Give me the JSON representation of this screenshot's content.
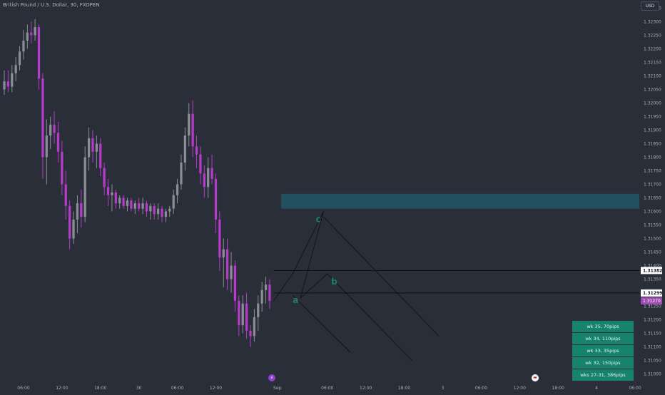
{
  "header": {
    "symbol_title": "British Pound / U.S. Dollar, 30, FXOPEN",
    "currency": "USD"
  },
  "colors": {
    "background": "#2a2e39",
    "candle_up": "#8b8e96",
    "candle_down": "#b43cc8",
    "zone_fill": "#23505e",
    "line_color": "#0e0f12",
    "wave_label": "#1e7d6a",
    "table_fill": "#17836c",
    "last_price_bg": "#a04bb4",
    "marker_bg": "#ffffff"
  },
  "chart_data": {
    "type": "candlestick",
    "title": "British Pound / U.S. Dollar, 30, FXOPEN",
    "y_axis": {
      "range": [
        1.3097,
        1.3238
      ],
      "ticks": [
        "1.32350",
        "1.32300",
        "1.32250",
        "1.32200",
        "1.32150",
        "1.32100",
        "1.32050",
        "1.32000",
        "1.31950",
        "1.31900",
        "1.31850",
        "1.31800",
        "1.31750",
        "1.31700",
        "1.31650",
        "1.31600",
        "1.31550",
        "1.31500",
        "1.31450",
        "1.31400",
        "1.31350",
        "1.31300",
        "1.31250",
        "1.31200",
        "1.31150",
        "1.31100",
        "1.31050",
        "1.31000"
      ]
    },
    "x_axis": {
      "range": [
        0,
        164
      ],
      "ticks": [
        {
          "i": 5,
          "label": "06:00"
        },
        {
          "i": 15,
          "label": "12:00"
        },
        {
          "i": 25,
          "label": "18:00"
        },
        {
          "i": 35,
          "label": "30"
        },
        {
          "i": 45,
          "label": "06:00"
        },
        {
          "i": 55,
          "label": "12:00"
        },
        {
          "i": 71,
          "label": "Sep"
        },
        {
          "i": 84,
          "label": "06:00"
        },
        {
          "i": 94,
          "label": "12:00"
        },
        {
          "i": 104,
          "label": "18:00"
        },
        {
          "i": 114,
          "label": "3"
        },
        {
          "i": 124,
          "label": "06:00"
        },
        {
          "i": 134,
          "label": "12:00"
        },
        {
          "i": 144,
          "label": "18:00"
        },
        {
          "i": 154,
          "label": "4"
        },
        {
          "i": 164,
          "label": "06:00"
        }
      ]
    },
    "candles": [
      [
        1.3205,
        1.3212,
        1.3203,
        1.3208
      ],
      [
        1.3208,
        1.3212,
        1.3204,
        1.3206
      ],
      [
        1.3206,
        1.3214,
        1.3204,
        1.3211
      ],
      [
        1.3211,
        1.3217,
        1.3208,
        1.3214
      ],
      [
        1.3214,
        1.3221,
        1.3212,
        1.3219
      ],
      [
        1.3219,
        1.3227,
        1.3216,
        1.3223
      ],
      [
        1.3223,
        1.3229,
        1.322,
        1.3226
      ],
      [
        1.3226,
        1.323,
        1.3222,
        1.3225
      ],
      [
        1.3225,
        1.3231,
        1.3223,
        1.3228
      ],
      [
        1.3228,
        1.3229,
        1.3205,
        1.3209
      ],
      [
        1.3209,
        1.3211,
        1.3172,
        1.318
      ],
      [
        1.318,
        1.3194,
        1.317,
        1.3188
      ],
      [
        1.3188,
        1.3195,
        1.3183,
        1.3192
      ],
      [
        1.3192,
        1.3197,
        1.3185,
        1.3189
      ],
      [
        1.3189,
        1.3193,
        1.3178,
        1.3182
      ],
      [
        1.3182,
        1.3186,
        1.3166,
        1.317
      ],
      [
        1.317,
        1.3175,
        1.3157,
        1.3162
      ],
      [
        1.3162,
        1.3164,
        1.3146,
        1.315
      ],
      [
        1.315,
        1.316,
        1.3148,
        1.3157
      ],
      [
        1.3157,
        1.3166,
        1.3152,
        1.3163
      ],
      [
        1.3163,
        1.3168,
        1.3154,
        1.3158
      ],
      [
        1.3158,
        1.3184,
        1.3156,
        1.318
      ],
      [
        1.318,
        1.3191,
        1.3175,
        1.3187
      ],
      [
        1.3187,
        1.319,
        1.3178,
        1.3182
      ],
      [
        1.3182,
        1.3188,
        1.3176,
        1.3185
      ],
      [
        1.3185,
        1.3187,
        1.3173,
        1.3176
      ],
      [
        1.3176,
        1.3178,
        1.3166,
        1.3169
      ],
      [
        1.3169,
        1.3172,
        1.3162,
        1.3166
      ],
      [
        1.3166,
        1.317,
        1.316,
        1.3167
      ],
      [
        1.3167,
        1.3168,
        1.3161,
        1.3163
      ],
      [
        1.3163,
        1.3166,
        1.3161,
        1.3165
      ],
      [
        1.3165,
        1.3166,
        1.3161,
        1.3162
      ],
      [
        1.3162,
        1.3165,
        1.316,
        1.3164
      ],
      [
        1.3164,
        1.3165,
        1.316,
        1.3161
      ],
      [
        1.3161,
        1.3164,
        1.3159,
        1.3163
      ],
      [
        1.3163,
        1.3165,
        1.316,
        1.3161
      ],
      [
        1.3161,
        1.3165,
        1.3159,
        1.3163
      ],
      [
        1.3163,
        1.3164,
        1.3158,
        1.316
      ],
      [
        1.316,
        1.3163,
        1.3157,
        1.3162
      ],
      [
        1.3162,
        1.3163,
        1.3157,
        1.3159
      ],
      [
        1.3159,
        1.3163,
        1.3157,
        1.3161
      ],
      [
        1.3161,
        1.3162,
        1.3156,
        1.3158
      ],
      [
        1.3158,
        1.3161,
        1.3156,
        1.316
      ],
      [
        1.316,
        1.3162,
        1.3158,
        1.3161
      ],
      [
        1.3161,
        1.3168,
        1.3159,
        1.3166
      ],
      [
        1.3166,
        1.3172,
        1.3163,
        1.317
      ],
      [
        1.317,
        1.3181,
        1.3168,
        1.3178
      ],
      [
        1.3178,
        1.3191,
        1.3175,
        1.3188
      ],
      [
        1.3188,
        1.32,
        1.3184,
        1.3196
      ],
      [
        1.3196,
        1.3201,
        1.318,
        1.3184
      ],
      [
        1.3184,
        1.3188,
        1.3176,
        1.3181
      ],
      [
        1.3181,
        1.3184,
        1.317,
        1.3174
      ],
      [
        1.3174,
        1.3177,
        1.3165,
        1.3169
      ],
      [
        1.3169,
        1.318,
        1.3165,
        1.3176
      ],
      [
        1.3176,
        1.3181,
        1.317,
        1.3172
      ],
      [
        1.3172,
        1.3174,
        1.3152,
        1.3157
      ],
      [
        1.3157,
        1.316,
        1.3138,
        1.3143
      ],
      [
        1.3143,
        1.315,
        1.3132,
        1.3146
      ],
      [
        1.3146,
        1.315,
        1.3131,
        1.3135
      ],
      [
        1.3135,
        1.3145,
        1.313,
        1.314
      ],
      [
        1.314,
        1.3142,
        1.3123,
        1.3127
      ],
      [
        1.3127,
        1.3129,
        1.3114,
        1.3118
      ],
      [
        1.3118,
        1.3129,
        1.3115,
        1.3126
      ],
      [
        1.3126,
        1.313,
        1.3113,
        1.3116
      ],
      [
        1.3116,
        1.3118,
        1.311,
        1.3114
      ],
      [
        1.3114,
        1.3124,
        1.3112,
        1.3121
      ],
      [
        1.3121,
        1.3129,
        1.3116,
        1.3126
      ],
      [
        1.3126,
        1.3134,
        1.3123,
        1.3131
      ],
      [
        1.3131,
        1.3136,
        1.3126,
        1.3133
      ],
      [
        1.3133,
        1.3135,
        1.3124,
        1.3127
      ]
    ],
    "horizontal_lines": [
      {
        "price": 1.31382,
        "label": "1.31382",
        "from_i": 70
      },
      {
        "price": 1.31299,
        "label": "1.31299",
        "from_i": 70
      }
    ],
    "last_price": {
      "price": 1.3127,
      "label": "1.31270"
    },
    "zone": {
      "from_i": 72,
      "y1": 1.3161,
      "y2": 1.31665
    },
    "wave_path": [
      {
        "i": 70,
        "p": 1.3127
      },
      {
        "i": 75,
        "p": 1.3137
      },
      {
        "i": 83,
        "p": 1.316
      },
      {
        "i": 77,
        "p": 1.3128
      },
      {
        "i": 84,
        "p": 1.3137
      }
    ],
    "projection_lines": [
      {
        "from": {
          "i": 75,
          "p": 1.3129
        },
        "to": {
          "i": 90,
          "p": 1.3108
        }
      },
      {
        "from": {
          "i": 84,
          "p": 1.3137
        },
        "to": {
          "i": 106,
          "p": 1.3105
        }
      },
      {
        "from": {
          "i": 83,
          "p": 1.3158
        },
        "to": {
          "i": 113,
          "p": 1.3114
        }
      }
    ],
    "wave_labels": [
      {
        "text": "a",
        "i": 75,
        "p": 1.31262
      },
      {
        "text": "b",
        "i": 85,
        "p": 1.3133
      },
      {
        "text": "c",
        "i": 81,
        "p": 1.3156
      }
    ]
  },
  "wk_table": [
    "wk 35, 70pips",
    "wk 34, 110pips",
    "wk 33, 35pips",
    "wk 32, 150pips",
    "wks 27-31, 386pips"
  ]
}
